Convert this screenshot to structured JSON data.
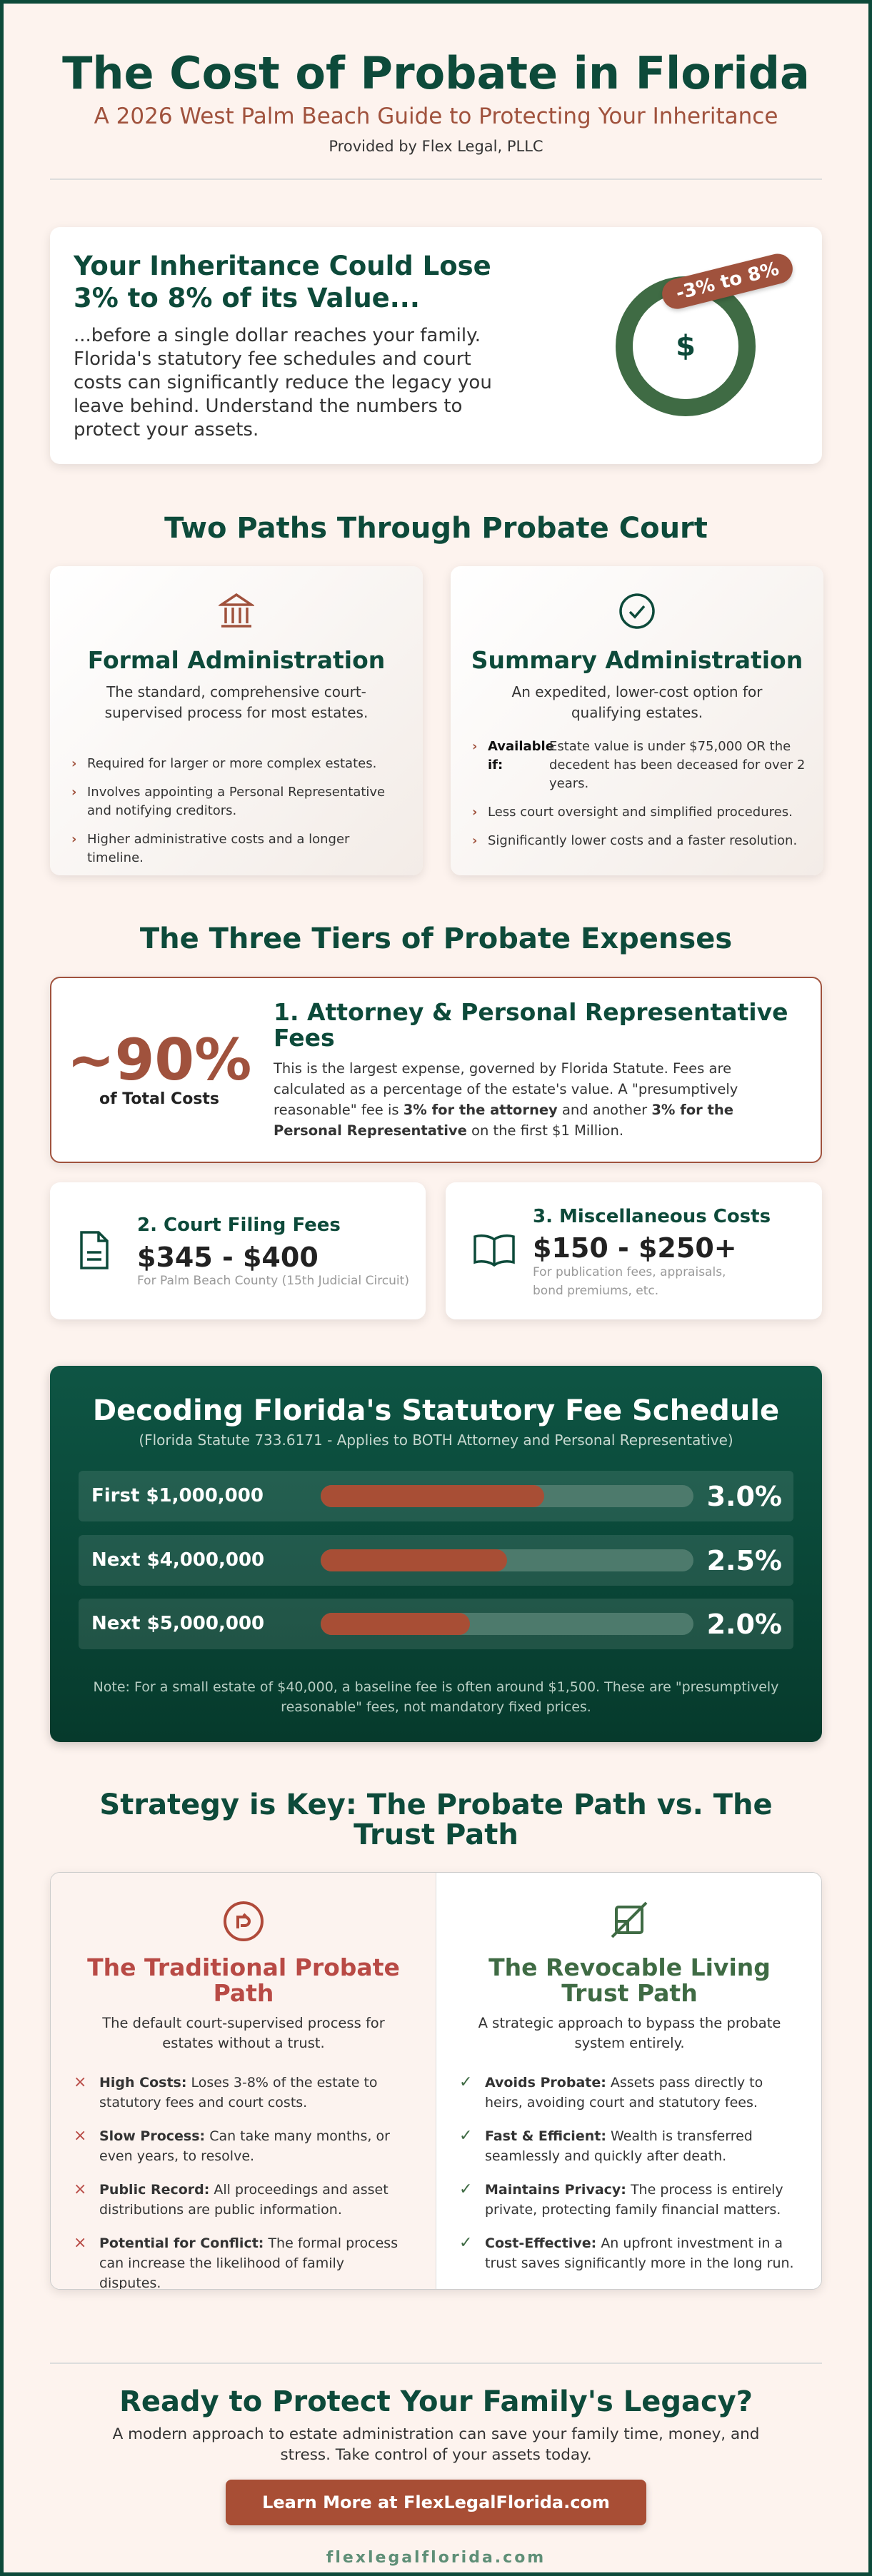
{
  "header": {
    "title": "The Cost of Probate in Florida",
    "subtitle": "A 2026 West Palm Beach Guide to Protecting Your Inheritance",
    "provider": "Provided by Flex Legal, PLLC"
  },
  "intro": {
    "heading": [
      "Your Inheritance Could Lose",
      "3% to 8% of its Value..."
    ],
    "body": "...before a single dollar reaches your family. Florida's statutory fee schedules and court costs can significantly reduce the legacy you leave behind. Understand the numbers to protect your assets.",
    "badge": "-3% to 8%",
    "icon": "$"
  },
  "paths": {
    "heading": "Two Paths Through Probate Court",
    "cards": [
      {
        "title": "Formal Administration",
        "description": "The standard, comprehensive court-supervised process for most estates.",
        "bullets": [
          "Required for larger or more complex estates.",
          "Involves appointing a Personal Representative and notifying creditors.",
          "Higher administrative costs and a longer timeline."
        ]
      },
      {
        "title": "Summary Administration",
        "description": "An expedited, lower-cost option for qualifying estates.",
        "eligibility": {
          "label": "Available if:",
          "text": "Estate value is under $75,000 OR the decedent has been deceased for over 2 years."
        },
        "bullets": [
          "Less court oversight and simplified procedures.",
          "Significantly lower costs and a faster resolution."
        ]
      }
    ]
  },
  "tiers": {
    "heading": "The Three Tiers of Probate Expenses",
    "attorney": {
      "stat": "~90%",
      "stat_label": "of Total Costs",
      "title": "1. Attorney & Personal Representative Fees",
      "body": [
        "This is the largest expense, governed by Florida Statute. Fees are calculated as a percentage of the estate's value. A \"presumptively reasonable\" fee is ",
        "3% for the attorney",
        " and another ",
        "3% for the Personal Representative",
        " on the first $1 Million."
      ]
    },
    "court": {
      "title": "2. Court Filing Fees",
      "amount": "$345 - $400",
      "note": "For Palm Beach County (15th Judicial Circuit)"
    },
    "misc": {
      "title": "3. Miscellaneous Costs",
      "amount": "$150 - $250+",
      "note": "For publication fees, appraisals, bond premiums, etc."
    }
  },
  "fees": {
    "heading": "Decoding Florida's Statutory Fee Schedule",
    "subheading": "(Florida Statute 733.6171 - Applies to BOTH Attorney and Personal Representative)",
    "rows": [
      {
        "label": "First $1,000,000",
        "rate": "3.0%"
      },
      {
        "label": "Next $4,000,000",
        "rate": "2.5%"
      },
      {
        "label": "Next $5,000,000",
        "rate": "2.0%"
      }
    ],
    "note": "Note: For a small estate of $40,000, a baseline fee is often around $1,500. These are \"presumptively reasonable\" fees, not mandatory fixed prices."
  },
  "strategy": {
    "heading": "Strategy is Key: The Probate Path vs. The Trust Path",
    "columns": [
      {
        "title": "The Traditional Probate Path",
        "description": "The default court-supervised process for estates without a trust.",
        "items": [
          {
            "label": "High Costs:",
            "text": "Loses 3-8% of the estate to statutory fees and court costs."
          },
          {
            "label": "Slow Process:",
            "text": "Can take many months, or even years, to resolve."
          },
          {
            "label": "Public Record:",
            "text": "All proceedings and asset distributions are public information."
          },
          {
            "label": "Potential for Conflict:",
            "text": "The formal process can increase the likelihood of family disputes."
          }
        ]
      },
      {
        "title": "The Revocable Living Trust Path",
        "description": "A strategic approach to bypass the probate system entirely.",
        "items": [
          {
            "label": "Avoids Probate:",
            "text": "Assets pass directly to heirs, avoiding court and statutory fees."
          },
          {
            "label": "Fast & Efficient:",
            "text": "Wealth is transferred seamlessly and quickly after death."
          },
          {
            "label": "Maintains Privacy:",
            "text": "The process is entirely private, protecting family financial matters."
          },
          {
            "label": "Cost-Effective:",
            "text": "An upfront investment in a trust saves significantly more in the long run."
          }
        ]
      }
    ]
  },
  "cta": {
    "heading": "Ready to Protect Your Family's Legacy?",
    "body": "A modern approach to estate administration can save your family time, money, and stress. Take control of your assets today.",
    "button": "Learn More at FlexLegalFlorida.com",
    "url": "flexlegalflorida.com"
  }
}
